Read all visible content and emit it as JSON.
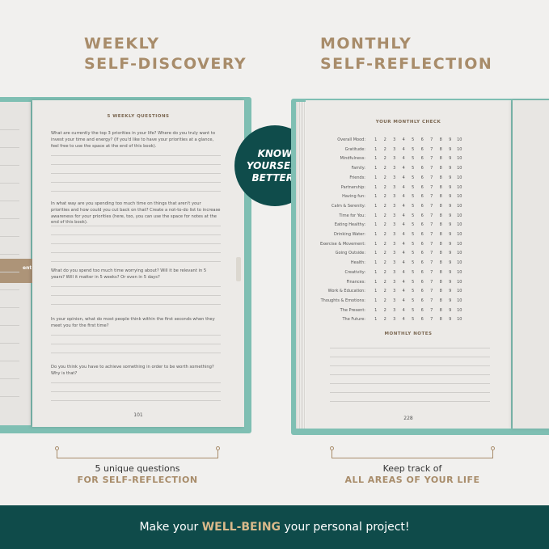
{
  "left_heading": [
    "WEEKLY",
    "SELF-DISCOVERY"
  ],
  "right_heading": [
    "MONTHLY",
    "SELF-REFLECTION"
  ],
  "badge": [
    "KNOW",
    "YOURSELF",
    "BETTER!"
  ],
  "left_page": {
    "partial_tab_text": "ent",
    "title": "5 WEEKLY QUESTIONS",
    "questions": [
      "What are currently the top 3 priorities in your life? Where do you truly want to invest your time and energy? (If you'd like to have your priorities at a glance, feel free to use the space at the end of this book).",
      "In what way are you spending too much time on things that aren't your priorities and how could you cut back on that? Create a not-to-do list to increase awareness for your priorities (here, too, you can use the space for notes at the end of this book).",
      "What do you spend too much time worrying about? Will it be relevant in 5 years? Will it matter in 5 weeks? Or even in 5 days?",
      "In your opinion, what do most people think within the first seconds when they meet you for the first time?",
      "Do you think you have to achieve something in order to be worth something? Why is that?"
    ],
    "page_number": "101"
  },
  "right_page": {
    "title": "YOUR MONTHLY CHECK",
    "scale": [
      "1",
      "2",
      "3",
      "4",
      "5",
      "6",
      "7",
      "8",
      "9",
      "10"
    ],
    "items": [
      "Overall Mood:",
      "Gratitude:",
      "Mindfulness:",
      "Family:",
      "Friends:",
      "Partnership:",
      "Having fun:",
      "Calm & Serenity:",
      "Time for You:",
      "Eating Healthy:",
      "Drinking Water:",
      "Exercise & Movement:",
      "Going Outside:",
      "Health:",
      "Creativity:",
      "Finances:",
      "Work & Education:",
      "Thoughts & Emotions:",
      "The Present:",
      "The Future:"
    ],
    "notes_title": "MONTHLY NOTES",
    "page_number": "228"
  },
  "left_caption": {
    "line1": "5 unique questions",
    "line2": "FOR SELF-REFLECTION"
  },
  "right_caption": {
    "line1": "Keep track of",
    "line2": "ALL AREAS OF YOUR LIFE"
  },
  "banner": {
    "before": "Make your ",
    "highlight": "WELL-BEING",
    "after": " your personal project!"
  },
  "colors": {
    "teal_dark": "#0f4b4a",
    "cover": "#7fbfb3",
    "tan": "#a88c6a"
  }
}
